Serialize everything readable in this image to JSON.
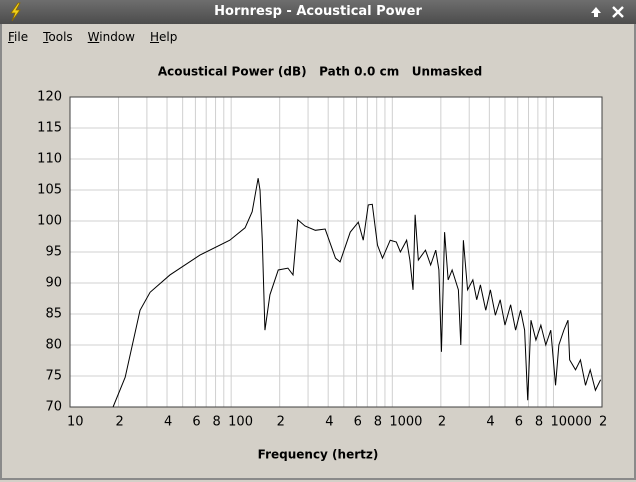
{
  "window": {
    "title": "Hornresp - Acoustical Power"
  },
  "menu": [
    "File",
    "Tools",
    "Window",
    "Help"
  ],
  "chart_data": {
    "type": "line",
    "title": "Acoustical Power (dB)   Path 0.0 cm   Unmasked",
    "x_label": "Frequency (hertz)",
    "xscale": "log",
    "xlim": [
      10,
      20000
    ],
    "ylim": [
      70,
      120
    ],
    "xticks": [
      10,
      {
        "value": 20,
        "label": "2"
      },
      {
        "value": 40,
        "label": "4"
      },
      {
        "value": 60,
        "label": "6"
      },
      {
        "value": 80,
        "label": "8"
      },
      100,
      {
        "value": 200,
        "label": "2"
      },
      {
        "value": 400,
        "label": "4"
      },
      {
        "value": 600,
        "label": "6"
      },
      {
        "value": 800,
        "label": "8"
      },
      1000,
      {
        "value": 2000,
        "label": "2"
      },
      {
        "value": 4000,
        "label": "4"
      },
      {
        "value": 6000,
        "label": "6"
      },
      {
        "value": 8000,
        "label": "8"
      },
      10000,
      {
        "value": 20000,
        "label": "2"
      }
    ],
    "xminorticks": [
      30,
      50,
      70,
      90,
      300,
      500,
      700,
      900,
      3000,
      5000,
      7000,
      9000
    ],
    "yticks": [
      70,
      75,
      80,
      85,
      90,
      95,
      100,
      105,
      110,
      115,
      120
    ],
    "grid": true,
    "color": "#000000",
    "x": [
      18.5,
      22,
      27.2,
      31.4,
      41.7,
      64,
      98,
      122,
      135,
      147,
      151,
      156,
      162,
      174,
      196,
      225,
      242,
      259,
      287,
      333,
      383,
      444,
      474,
      548,
      615,
      660,
      709,
      751,
      809,
      869,
      970,
      1059,
      1122,
      1227,
      1285,
      1344,
      1385,
      1450,
      1606,
      1729,
      1860,
      1945,
      2017,
      2110,
      2220,
      2350,
      2570,
      2660,
      2760,
      2930,
      3160,
      3340,
      3520,
      3800,
      4060,
      4360,
      4670,
      5000,
      5420,
      5820,
      6250,
      6620,
      6920,
      7250,
      7780,
      8350,
      8960,
      9620,
      10300,
      10800,
      11600,
      12300,
      12600,
      13700,
      14700,
      15800,
      16900,
      18200,
      19600
    ],
    "values": [
      70,
      74.8,
      85.6,
      88.5,
      91.3,
      94.5,
      96.9,
      98.9,
      101.5,
      106.9,
      105,
      96.9,
      82.4,
      88.1,
      92.1,
      92.4,
      91.3,
      100.2,
      99.2,
      98.5,
      98.7,
      94,
      93.4,
      98.2,
      99.8,
      96.9,
      102.6,
      102.7,
      96.1,
      94,
      96.9,
      96.6,
      95,
      96.9,
      93.7,
      88.9,
      101,
      93.7,
      95.3,
      92.9,
      95.3,
      92.1,
      78.9,
      98.2,
      90.5,
      92.1,
      88.9,
      80,
      96.9,
      88.9,
      90.5,
      87.3,
      89.7,
      85.6,
      88.9,
      84.8,
      87.3,
      83.2,
      86.5,
      82.4,
      85.6,
      82.4,
      71.1,
      84,
      80.8,
      83.2,
      80,
      82.4,
      73.5,
      80,
      82.4,
      84,
      77.6,
      76,
      77.6,
      73.5,
      76,
      72.7,
      74.4
    ]
  }
}
